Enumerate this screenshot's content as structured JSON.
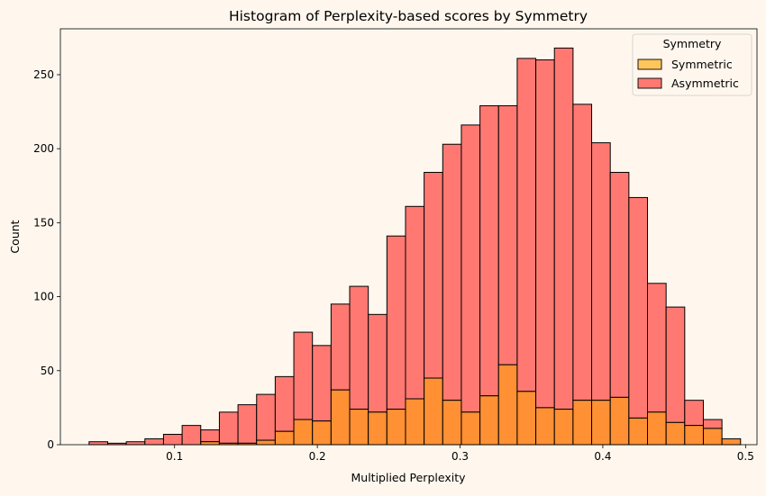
{
  "chart_data": {
    "type": "bar",
    "stacked": true,
    "title": "Histogram of Perplexity-based scores by Symmetry",
    "xlabel": "Multiplied Perplexity",
    "ylabel": "Count",
    "xlim": [
      0.02,
      0.508
    ],
    "ylim": [
      0,
      281
    ],
    "xticks": [
      0.1,
      0.2,
      0.3,
      0.4,
      0.5
    ],
    "xtick_labels": [
      "0.1",
      "0.2",
      "0.3",
      "0.4",
      "0.5"
    ],
    "yticks": [
      0,
      50,
      100,
      150,
      200,
      250
    ],
    "ytick_labels": [
      "0",
      "50",
      "100",
      "150",
      "200",
      "250"
    ],
    "grid": false,
    "legend": {
      "title": "Symmetry",
      "position": "top-right"
    },
    "bin_start": 0.0401,
    "bin_width": 0.01304,
    "series": [
      {
        "name": "Symmetric",
        "color": "#ffc65c",
        "values": [
          0,
          0,
          0,
          0,
          0,
          0,
          2,
          1,
          1,
          3,
          9,
          17,
          16,
          37,
          24,
          22,
          24,
          31,
          45,
          30,
          22,
          33,
          54,
          36,
          25,
          24,
          30,
          30,
          32,
          18,
          22,
          15,
          13,
          11,
          4
        ]
      },
      {
        "name": "Asymmetric",
        "color": "#ff7972",
        "values": [
          2,
          1,
          2,
          4,
          7,
          13,
          8,
          21,
          26,
          31,
          37,
          59,
          51,
          58,
          83,
          66,
          117,
          130,
          139,
          173,
          194,
          196,
          175,
          225,
          235,
          244,
          200,
          174,
          152,
          149,
          87,
          78,
          17,
          6,
          0
        ]
      }
    ]
  }
}
